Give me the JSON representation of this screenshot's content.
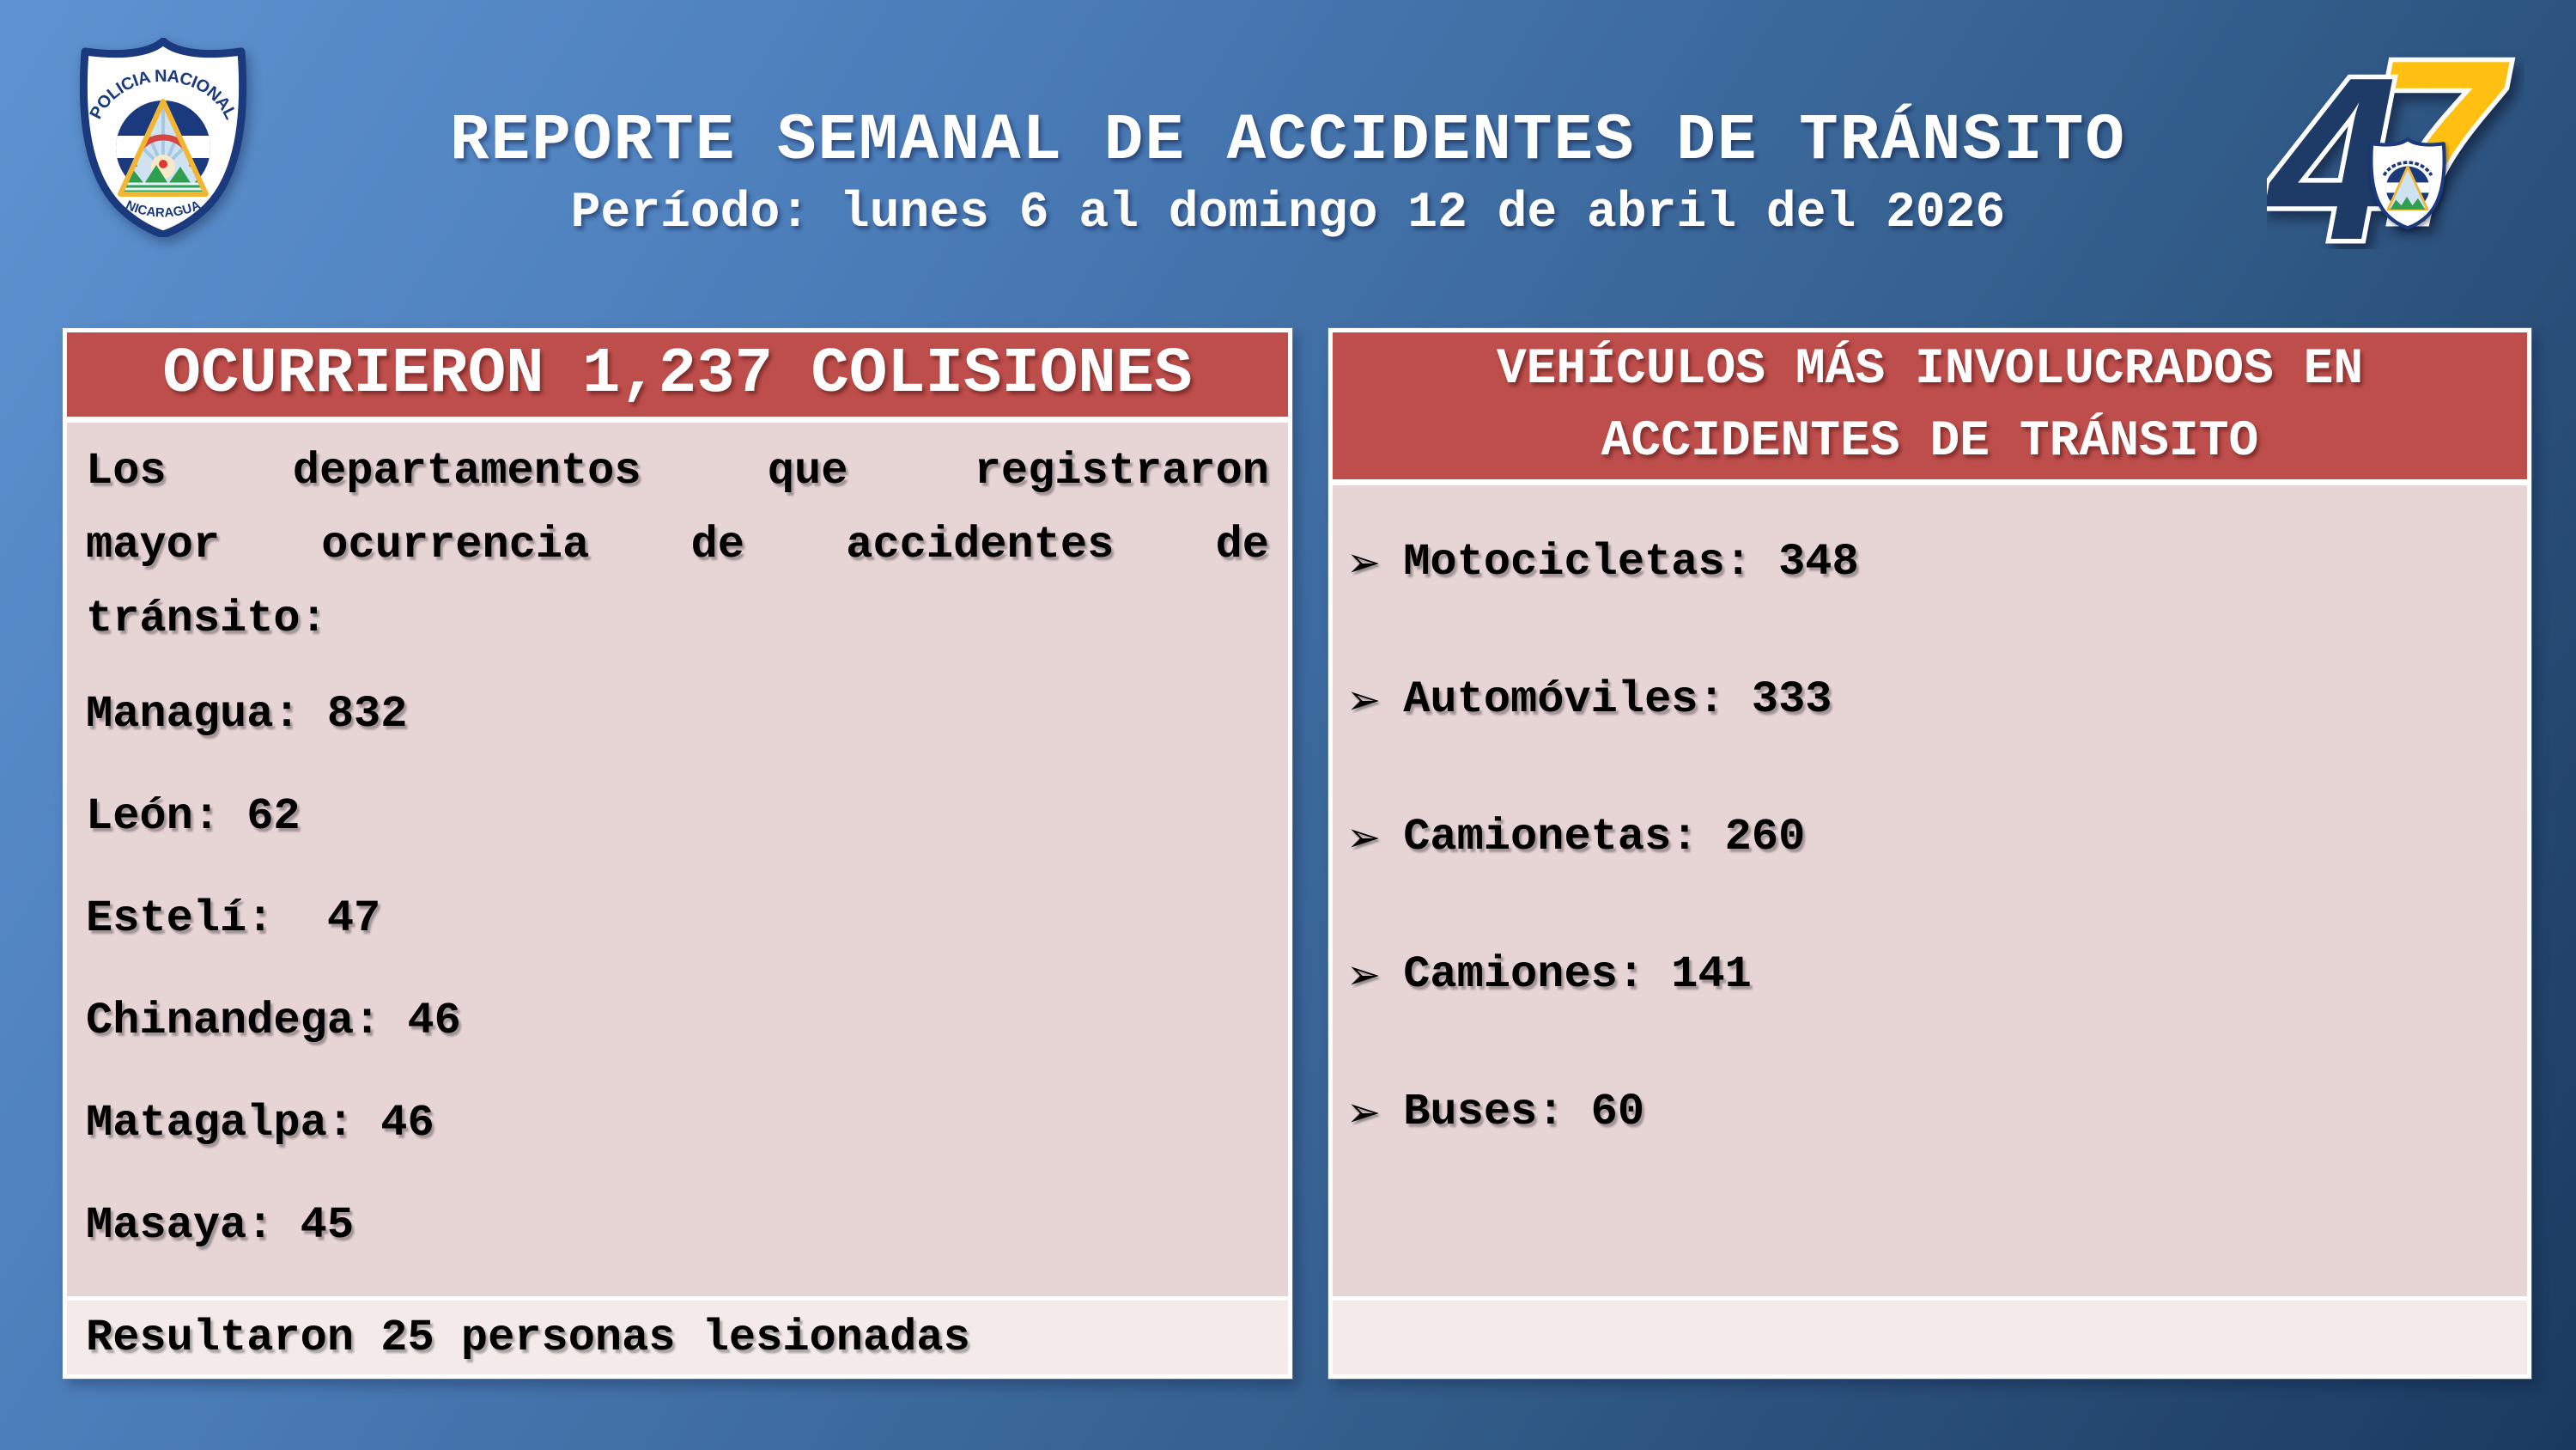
{
  "slide_title": {
    "title": "REPORTE SEMANAL DE ACCIDENTES DE TRÁNSITO",
    "subtitle": "Período: lunes 6 al domingo 12 de abril del 2026"
  },
  "police_badge": {
    "arc_top": "POLICIA NACIONAL",
    "arc_bottom": "NICARAGUA"
  },
  "anniversary_logo": {
    "digit_left": "4",
    "digit_right": "7"
  },
  "collisions_panel": {
    "header": "OCURRIERON 1,237 COLISIONES",
    "intro_lines": [
      "Los departamentos que registraron",
      "mayor ocurrencia de accidentes de",
      "tránsito:"
    ],
    "departments": [
      {
        "name": "Managua",
        "count": "832"
      },
      {
        "name": "León",
        "count": "62"
      },
      {
        "name": "Estelí",
        "count": "47",
        "gap": "  "
      },
      {
        "name": "Chinandega",
        "count": "46"
      },
      {
        "name": "Matagalpa",
        "count": "46"
      },
      {
        "name": "Masaya",
        "count": "45"
      }
    ],
    "footer": "Resultaron 25 personas lesionadas"
  },
  "vehicles_panel": {
    "header_lines": [
      "VEHÍCULOS MÁS INVOLUCRADOS EN",
      "ACCIDENTES DE TRÁNSITO"
    ],
    "bullet_icon": "➢",
    "items": [
      {
        "name": "Motocicletas",
        "count": "348"
      },
      {
        "name": "Automóviles",
        "count": "333"
      },
      {
        "name": "Camionetas",
        "count": "260"
      },
      {
        "name": "Camiones",
        "count": "141"
      },
      {
        "name": "Buses",
        "count": "60"
      }
    ]
  },
  "colors": {
    "header_red": "#BE4E4B",
    "panel_body_pink": "#E7D4D5",
    "panel_footer_light": "#F3EAE9",
    "background_top_left": "#5E93D1",
    "background_bottom_right": "#1B3A5F",
    "badge_navy": "#1A3A7D",
    "digit_4_navy": "#1E3A66",
    "digit_7_gold": "#FFC012"
  }
}
